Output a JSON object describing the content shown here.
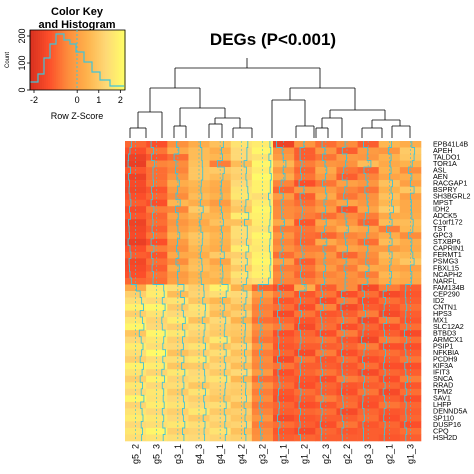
{
  "chart_data": {
    "type": "heatmap",
    "title": "DEGs (P<0.001)",
    "color_key": {
      "title_line1": "Color Key",
      "title_line2": "and Histogram",
      "xlabel": "Row Z-Score",
      "ylabel": "Count",
      "x_ticks": [
        "-2",
        "0",
        "1",
        "2"
      ],
      "y_ticks": [
        "0",
        "100",
        "200"
      ],
      "colors": [
        "#d7301f",
        "#fc4e2a",
        "#fd8d3c",
        "#feb24c",
        "#fed976",
        "#ffff66"
      ]
    },
    "columns": [
      "g5_2",
      "g5_3",
      "g3_1",
      "g4_3",
      "g4_1",
      "g4_2",
      "g3_2",
      "g1_1",
      "g1_2",
      "g2_3",
      "g2_2",
      "g3_3",
      "g2_1",
      "g1_3"
    ],
    "rows": [
      "EPB41L4B",
      "APEH",
      "TALDO1",
      "TOR1A",
      "ASL",
      "AEN",
      "RACGAP1",
      "BSPRY",
      "SH3BGRL2",
      "MPST",
      "IDH2",
      "ADCK5",
      "C1orf172",
      "TST",
      "GPC3",
      "STXBP6",
      "CAPRIN1",
      "FERMT1",
      "PSMG3",
      "FBXL15",
      "NCAPH2",
      "NARFL",
      "FAM134B",
      "CEP290",
      "ID2",
      "CNTN1",
      "HPS3",
      "MX1",
      "SLC12A2",
      "BTBD3",
      "ARMCX1",
      "PSIP1",
      "NFKBIA",
      "PCDH9",
      "KIF3A",
      "IFIT3",
      "SNCA",
      "RRAD",
      "TPM2",
      "SAV1",
      "LHFP",
      "DENND5A",
      "SP110",
      "DUSP16",
      "CPQ",
      "HSH2D"
    ],
    "values": [
      [
        -0.9,
        -1.2,
        -0.3,
        0.3,
        0.7,
        1.4,
        1.6,
        -1.5,
        -0.2,
        -0.8,
        -0.4,
        -1.0,
        0.5,
        0.3
      ],
      [
        -1.2,
        -0.7,
        0.2,
        0.6,
        0.3,
        1.2,
        1.8,
        -0.3,
        -1.0,
        -0.2,
        -1.0,
        -0.1,
        -0.2,
        0.9
      ],
      [
        -1.5,
        -1.1,
        -0.8,
        0.6,
        0.5,
        1.2,
        1.4,
        -0.1,
        -1.0,
        -0.7,
        -0.1,
        -0.2,
        0.4,
        0.8
      ],
      [
        -1.6,
        -0.5,
        -0.4,
        0.7,
        -0.6,
        0.6,
        1.8,
        0.5,
        -0.6,
        -0.2,
        -0.3,
        0.6,
        0.2,
        0.4
      ],
      [
        -1.1,
        -0.8,
        -0.5,
        0.8,
        0.9,
        1.1,
        1.6,
        -0.1,
        -0.9,
        0.2,
        -0.7,
        -0.9,
        0.4,
        -0.4
      ],
      [
        -1.5,
        -0.8,
        -0.2,
        0.8,
        0.6,
        1.0,
        1.9,
        0.3,
        -0.7,
        -0.1,
        -1.0,
        -0.5,
        0.1,
        0.3
      ],
      [
        -1.3,
        -0.7,
        0.3,
        0.5,
        0.3,
        1.2,
        1.7,
        -0.5,
        -1.2,
        -0.7,
        0.0,
        -0.2,
        0.7,
        0.0
      ],
      [
        -1.4,
        -1.1,
        -0.1,
        0.4,
        0.2,
        1.4,
        1.7,
        -0.9,
        -0.2,
        -0.1,
        -0.5,
        -0.7,
        0.4,
        0.8
      ],
      [
        -1.2,
        -0.9,
        -0.4,
        0.6,
        0.4,
        1.5,
        1.3,
        -0.1,
        -1.0,
        0.2,
        -0.7,
        -0.3,
        0.7,
        0.0
      ],
      [
        -1.0,
        -1.2,
        0.5,
        0.3,
        -0.1,
        1.0,
        1.6,
        -0.5,
        -0.8,
        -0.4,
        0.1,
        -0.2,
        0.5,
        0.2
      ],
      [
        -1.3,
        -0.6,
        -0.5,
        0.9,
        0.3,
        0.8,
        1.8,
        -0.4,
        -0.5,
        -0.1,
        -1.1,
        0.1,
        0.9,
        0.2
      ],
      [
        -1.1,
        -0.9,
        0.1,
        0.5,
        0.5,
        1.6,
        1.7,
        -0.4,
        -0.6,
        -0.8,
        -0.4,
        -0.6,
        0.2,
        0.3
      ],
      [
        -1.5,
        -0.8,
        -0.2,
        0.2,
        0.7,
        0.7,
        1.6,
        0.2,
        -1.1,
        0.1,
        -0.2,
        -0.9,
        0.6,
        0.6
      ],
      [
        -1.4,
        -1.0,
        0.0,
        0.4,
        0.3,
        1.3,
        1.4,
        -0.6,
        -0.7,
        -0.3,
        0.3,
        0.1,
        -0.6,
        0.5
      ],
      [
        -1.3,
        -0.7,
        0.4,
        0.8,
        0.5,
        1.3,
        1.8,
        -0.2,
        -0.8,
        -0.9,
        -0.5,
        -0.3,
        0.3,
        -0.4
      ],
      [
        -1.6,
        -1.2,
        -0.1,
        0.7,
        0.4,
        1.1,
        1.6,
        -0.5,
        -0.9,
        0.2,
        -0.3,
        -0.8,
        0.6,
        0.3
      ],
      [
        -1.2,
        -0.6,
        -0.3,
        0.5,
        0.3,
        1.6,
        1.5,
        -0.3,
        -0.6,
        -0.6,
        0.1,
        -0.1,
        -0.1,
        0.2
      ],
      [
        -1.0,
        -1.1,
        0.2,
        0.3,
        0.9,
        1.0,
        1.7,
        -0.8,
        -0.4,
        -0.2,
        -0.9,
        -0.4,
        0.6,
        0.5
      ],
      [
        -1.4,
        -0.8,
        -0.4,
        0.6,
        0.1,
        1.3,
        1.8,
        0.0,
        -1.0,
        -0.4,
        -0.2,
        -0.5,
        0.4,
        0.8
      ],
      [
        -1.3,
        -1.0,
        0.3,
        0.7,
        0.5,
        0.9,
        1.6,
        -0.6,
        -0.7,
        -0.1,
        -0.6,
        0.2,
        0.1,
        0.0
      ],
      [
        -1.2,
        -0.7,
        -0.1,
        0.4,
        0.6,
        1.4,
        1.7,
        -0.4,
        -0.9,
        -0.5,
        -0.3,
        -0.6,
        0.5,
        0.3
      ],
      [
        -0.9,
        -0.8,
        0.0,
        0.5,
        0.4,
        1.1,
        1.3,
        -0.5,
        -0.6,
        -0.3,
        -0.4,
        -0.2,
        0.3,
        0.2
      ],
      [
        0.2,
        1.5,
        1.3,
        1.0,
        1.7,
        0.4,
        -0.9,
        -1.2,
        0.3,
        -1.0,
        -0.4,
        -1.3,
        -0.6,
        -1.0
      ],
      [
        1.0,
        1.6,
        0.6,
        1.1,
        1.3,
        1.2,
        0.0,
        -0.6,
        -1.1,
        -0.7,
        -1.2,
        -0.8,
        -1.3,
        -1.1
      ],
      [
        1.3,
        1.2,
        1.4,
        0.8,
        0.5,
        1.0,
        -0.4,
        -1.1,
        -0.9,
        -1.2,
        -0.6,
        -1.2,
        -0.8,
        -1.0
      ],
      [
        1.7,
        1.8,
        0.9,
        1.4,
        0.9,
        0.6,
        -0.6,
        -0.8,
        -1.2,
        -0.5,
        -1.3,
        -1.0,
        -1.1,
        -0.8
      ],
      [
        1.0,
        1.4,
        1.2,
        1.3,
        0.6,
        1.0,
        -0.5,
        -1.3,
        -0.7,
        -1.1,
        -1.0,
        -0.6,
        -1.3,
        -1.0
      ],
      [
        1.5,
        1.1,
        1.6,
        0.7,
        1.2,
        0.4,
        -0.8,
        -0.9,
        -1.1,
        -0.9,
        -0.7,
        -1.3,
        -0.6,
        -1.1
      ],
      [
        1.8,
        1.2,
        1.0,
        1.3,
        1.0,
        0.9,
        -0.3,
        -0.6,
        -1.3,
        -0.8,
        -1.2,
        -0.9,
        -1.2,
        -0.8
      ],
      [
        0.8,
        1.8,
        1.5,
        1.1,
        0.9,
        0.8,
        -0.5,
        -1.2,
        -0.9,
        -1.2,
        -0.6,
        -1.1,
        -1.0,
        -1.3
      ],
      [
        1.2,
        1.5,
        1.0,
        0.9,
        1.5,
        0.6,
        -0.7,
        -1.0,
        -0.8,
        -0.7,
        -1.1,
        -1.4,
        -0.6,
        -0.8
      ],
      [
        1.6,
        1.3,
        1.2,
        1.4,
        0.8,
        1.1,
        -0.2,
        -1.1,
        -1.0,
        -1.0,
        -0.9,
        -0.6,
        -1.2,
        -1.2
      ],
      [
        1.3,
        1.9,
        0.7,
        1.0,
        1.3,
        0.7,
        -0.6,
        -0.9,
        -1.3,
        -0.6,
        -1.2,
        -0.9,
        -0.8,
        -1.0
      ],
      [
        1.0,
        1.3,
        1.3,
        1.5,
        0.9,
        1.0,
        -0.4,
        -1.3,
        -0.7,
        -1.1,
        -0.8,
        -1.2,
        -1.0,
        -0.7
      ],
      [
        1.7,
        1.6,
        0.8,
        0.9,
        1.2,
        0.6,
        -0.5,
        -0.7,
        -1.0,
        -1.0,
        -1.1,
        -0.8,
        -1.2,
        -1.2
      ],
      [
        1.4,
        1.1,
        1.5,
        1.2,
        0.9,
        1.2,
        -0.1,
        -1.2,
        -0.9,
        -0.7,
        -1.0,
        -1.3,
        -0.9,
        -1.0
      ],
      [
        1.0,
        1.7,
        1.1,
        1.3,
        1.4,
        0.5,
        -0.8,
        -1.0,
        -1.1,
        -1.2,
        -0.6,
        -0.8,
        -1.2,
        -0.6
      ],
      [
        1.5,
        1.2,
        1.3,
        0.8,
        1.1,
        1.0,
        -0.3,
        -0.8,
        -1.2,
        -0.9,
        -1.1,
        -1.0,
        -0.9,
        -1.1
      ],
      [
        1.2,
        1.5,
        0.9,
        1.4,
        1.0,
        0.9,
        -0.6,
        -1.1,
        -0.8,
        -1.0,
        -1.2,
        -0.7,
        -1.3,
        -0.8
      ],
      [
        1.8,
        1.4,
        1.2,
        1.0,
        0.8,
        1.1,
        -0.4,
        -1.2,
        -1.0,
        -0.6,
        -0.9,
        -1.1,
        -1.0,
        -1.2
      ],
      [
        1.1,
        1.6,
        1.4,
        1.2,
        1.3,
        0.6,
        -0.7,
        -0.9,
        -1.2,
        -1.1,
        -0.8,
        -1.2,
        -0.7,
        -0.9
      ],
      [
        1.4,
        1.2,
        1.0,
        1.5,
        0.9,
        1.0,
        -0.5,
        -1.0,
        -0.9,
        -0.8,
        -1.3,
        -0.9,
        -1.1,
        -1.0
      ],
      [
        1.6,
        1.5,
        1.2,
        0.9,
        1.2,
        0.8,
        -0.2,
        -1.3,
        -1.1,
        -1.0,
        -1.0,
        -0.8,
        -1.2,
        -0.9
      ],
      [
        1.2,
        1.3,
        1.5,
        1.3,
        1.0,
        1.1,
        -0.6,
        -0.8,
        -1.0,
        -1.2,
        -0.7,
        -1.1,
        -0.9,
        -1.2
      ],
      [
        1.5,
        1.8,
        1.0,
        1.1,
        1.4,
        0.7,
        -0.4,
        -1.1,
        -1.3,
        -0.9,
        -1.1,
        -1.0,
        -1.0,
        -0.8
      ],
      [
        1.3,
        1.4,
        1.3,
        1.2,
        1.1,
        1.0,
        -0.3,
        -1.0,
        -0.9,
        -1.0,
        -1.0,
        -1.0,
        -1.1,
        -1.0
      ]
    ]
  }
}
